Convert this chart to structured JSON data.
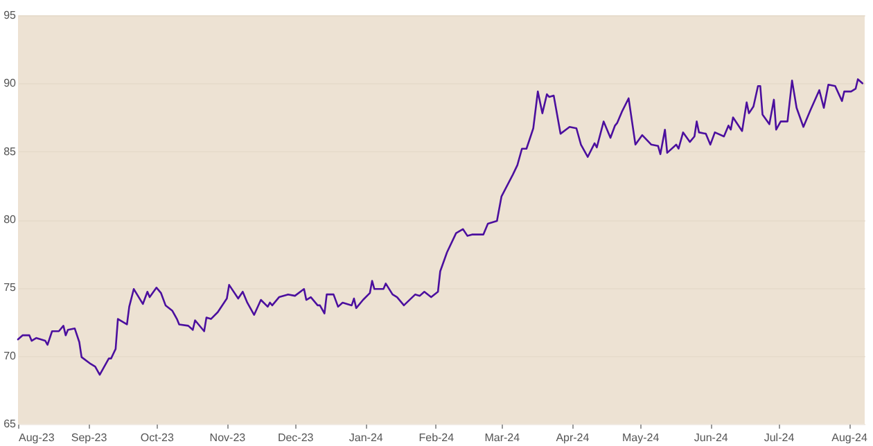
{
  "chart_data": {
    "type": "line",
    "xlim": [
      "2023-08-01",
      "2024-08-08"
    ],
    "ylim": [
      65,
      95
    ],
    "yticks": [
      65,
      70,
      75,
      80,
      85,
      90,
      95
    ],
    "xticks": [
      {
        "value": "2023-08-01",
        "label": "Aug-23"
      },
      {
        "value": "2023-09-01",
        "label": "Sep-23"
      },
      {
        "value": "2023-10-01",
        "label": "Oct-23"
      },
      {
        "value": "2023-11-01",
        "label": "Nov-23"
      },
      {
        "value": "2023-12-01",
        "label": "Dec-23"
      },
      {
        "value": "2024-01-01",
        "label": "Jan-24"
      },
      {
        "value": "2024-02-01",
        "label": "Feb-24"
      },
      {
        "value": "2024-03-01",
        "label": "Mar-24"
      },
      {
        "value": "2024-04-01",
        "label": "Apr-24"
      },
      {
        "value": "2024-05-01",
        "label": "May-24"
      },
      {
        "value": "2024-06-01",
        "label": "Jun-24"
      },
      {
        "value": "2024-07-01",
        "label": "Jul-24"
      },
      {
        "value": "2024-08-01",
        "label": "Aug-24"
      }
    ],
    "grid": "y",
    "marker": "none",
    "line_style": "solid",
    "x": [
      "2023-08-01",
      "2023-08-03",
      "2023-08-06",
      "2023-08-07",
      "2023-08-09",
      "2023-08-13",
      "2023-08-14",
      "2023-08-16",
      "2023-08-19",
      "2023-08-21",
      "2023-08-22",
      "2023-08-23",
      "2023-08-26",
      "2023-08-28",
      "2023-08-29",
      "2023-09-02",
      "2023-09-04",
      "2023-09-06",
      "2023-09-10",
      "2023-09-11",
      "2023-09-13",
      "2023-09-14",
      "2023-09-18",
      "2023-09-19",
      "2023-09-21",
      "2023-09-25",
      "2023-09-27",
      "2023-09-28",
      "2023-10-01",
      "2023-10-03",
      "2023-10-05",
      "2023-10-08",
      "2023-10-10",
      "2023-10-11",
      "2023-10-15",
      "2023-10-17",
      "2023-10-18",
      "2023-10-22",
      "2023-10-23",
      "2023-10-25",
      "2023-10-28",
      "2023-11-01",
      "2023-11-02",
      "2023-11-06",
      "2023-11-08",
      "2023-11-10",
      "2023-11-13",
      "2023-11-16",
      "2023-11-19",
      "2023-11-20",
      "2023-11-21",
      "2023-11-24",
      "2023-11-28",
      "2023-12-01",
      "2023-12-05",
      "2023-12-06",
      "2023-12-08",
      "2023-12-11",
      "2023-12-12",
      "2023-12-14",
      "2023-12-15",
      "2023-12-18",
      "2023-12-20",
      "2023-12-22",
      "2023-12-26",
      "2023-12-27",
      "2023-12-28",
      "2023-12-31",
      "2024-01-03",
      "2024-01-04",
      "2024-01-05",
      "2024-01-09",
      "2024-01-10",
      "2024-01-13",
      "2024-01-15",
      "2024-01-18",
      "2024-01-23",
      "2024-01-25",
      "2024-01-27",
      "2024-01-30",
      "2024-02-02",
      "2024-02-03",
      "2024-02-06",
      "2024-02-10",
      "2024-02-13",
      "2024-02-15",
      "2024-02-17",
      "2024-02-22",
      "2024-02-24",
      "2024-02-26",
      "2024-02-28",
      "2024-03-01",
      "2024-03-06",
      "2024-03-08",
      "2024-03-10",
      "2024-03-12",
      "2024-03-15",
      "2024-03-17",
      "2024-03-19",
      "2024-03-21",
      "2024-03-22",
      "2024-03-24",
      "2024-03-27",
      "2024-03-31",
      "2024-04-03",
      "2024-04-05",
      "2024-04-08",
      "2024-04-11",
      "2024-04-12",
      "2024-04-15",
      "2024-04-18",
      "2024-04-20",
      "2024-04-21",
      "2024-04-23",
      "2024-04-26",
      "2024-04-29",
      "2024-05-02",
      "2024-05-06",
      "2024-05-09",
      "2024-05-10",
      "2024-05-12",
      "2024-05-13",
      "2024-05-17",
      "2024-05-18",
      "2024-05-20",
      "2024-05-23",
      "2024-05-25",
      "2024-05-26",
      "2024-05-27",
      "2024-05-30",
      "2024-06-01",
      "2024-06-03",
      "2024-06-07",
      "2024-06-09",
      "2024-06-10",
      "2024-06-11",
      "2024-06-15",
      "2024-06-17",
      "2024-06-18",
      "2024-06-20",
      "2024-06-22",
      "2024-06-23",
      "2024-06-24",
      "2024-06-27",
      "2024-06-29",
      "2024-06-30",
      "2024-07-02",
      "2024-07-05",
      "2024-07-07",
      "2024-07-09",
      "2024-07-12",
      "2024-07-15",
      "2024-07-19",
      "2024-07-21",
      "2024-07-23",
      "2024-07-26",
      "2024-07-29",
      "2024-07-30",
      "2024-08-02",
      "2024-08-04",
      "2024-08-05",
      "2024-08-07"
    ],
    "series": [
      {
        "color": "#4b0f9e",
        "values": [
          71.2,
          71.5,
          71.5,
          71.1,
          71.3,
          71.1,
          70.8,
          71.8,
          71.8,
          72.2,
          71.5,
          71.9,
          72.0,
          71.0,
          69.9,
          69.4,
          69.2,
          68.6,
          69.8,
          69.8,
          70.5,
          72.7,
          72.3,
          73.6,
          74.9,
          73.8,
          74.7,
          74.3,
          75.0,
          74.6,
          73.7,
          73.3,
          72.7,
          72.3,
          72.2,
          71.9,
          72.6,
          71.8,
          72.8,
          72.7,
          73.2,
          74.2,
          75.2,
          74.2,
          74.7,
          73.9,
          73.0,
          74.1,
          73.6,
          73.9,
          73.7,
          74.3,
          74.5,
          74.4,
          74.9,
          74.1,
          74.3,
          73.7,
          73.7,
          73.1,
          74.5,
          74.5,
          73.6,
          73.9,
          73.7,
          74.2,
          73.5,
          74.1,
          74.6,
          75.5,
          74.9,
          74.9,
          75.3,
          74.5,
          74.3,
          73.7,
          74.5,
          74.4,
          74.7,
          74.3,
          74.7,
          76.2,
          77.6,
          79.0,
          79.3,
          78.8,
          78.9,
          78.9,
          79.7,
          79.8,
          79.9,
          81.7,
          83.3,
          84.0,
          85.2,
          85.2,
          86.7,
          89.4,
          87.8,
          89.2,
          89.0,
          89.1,
          86.3,
          86.8,
          86.7,
          85.5,
          84.6,
          85.6,
          85.3,
          87.2,
          86.0,
          86.9,
          87.1,
          87.9,
          88.9,
          85.5,
          86.2,
          85.5,
          85.4,
          84.8,
          86.6,
          84.9,
          85.5,
          85.2,
          86.4,
          85.7,
          86.1,
          87.2,
          86.4,
          86.3,
          85.5,
          86.4,
          86.1,
          86.9,
          86.6,
          87.5,
          86.5,
          88.6,
          87.8,
          88.3,
          89.8,
          89.8,
          87.7,
          87.0,
          88.8,
          86.6,
          87.2,
          87.2,
          90.2,
          88.2,
          86.8,
          88.0,
          89.5,
          88.2,
          89.9,
          89.8,
          88.7,
          89.4,
          89.4,
          89.6,
          90.3,
          90.0
        ]
      }
    ]
  }
}
